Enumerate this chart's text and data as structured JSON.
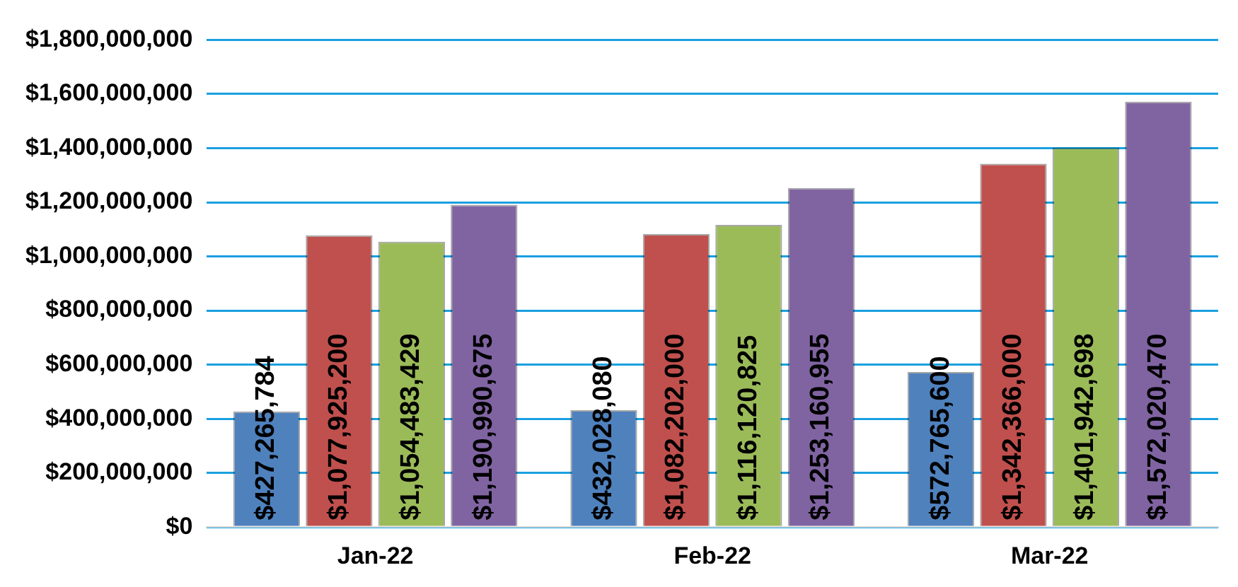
{
  "chart_data": {
    "type": "bar",
    "categories": [
      "Jan-22",
      "Feb-22",
      "Mar-22"
    ],
    "series": [
      {
        "color": "#4f81bd",
        "values": [
          427265784,
          432028080,
          572765600
        ],
        "value_labels": [
          "$427,265,784",
          "$432,028,080",
          "$572,765,600"
        ]
      },
      {
        "color": "#c0504d",
        "values": [
          1077925200,
          1082202000,
          1342366000
        ],
        "value_labels": [
          "$1,077,925,200",
          "$1,082,202,000",
          "$1,342,366,000"
        ]
      },
      {
        "color": "#9bbb59",
        "values": [
          1054483429,
          1116120825,
          1401942698
        ],
        "value_labels": [
          "$1,054,483,429",
          "$1,116,120,825",
          "$1,401,942,698"
        ]
      },
      {
        "color": "#8064a2",
        "values": [
          1190990675,
          1253160955,
          1572020470
        ],
        "value_labels": [
          "$1,190,990,675",
          "$1,253,160,955",
          "$1,572,020,470"
        ]
      }
    ],
    "ylim": [
      0,
      1800000000
    ],
    "yticks": [
      {
        "value": 0,
        "label": "$0"
      },
      {
        "value": 200000000,
        "label": "$200,000,000"
      },
      {
        "value": 400000000,
        "label": "$400,000,000"
      },
      {
        "value": 600000000,
        "label": "$600,000,000"
      },
      {
        "value": 800000000,
        "label": "$800,000,000"
      },
      {
        "value": 1000000000,
        "label": "$1,000,000,000"
      },
      {
        "value": 1200000000,
        "label": "$1,200,000,000"
      },
      {
        "value": 1400000000,
        "label": "$1,400,000,000"
      },
      {
        "value": 1600000000,
        "label": "$1,600,000,000"
      },
      {
        "value": 1800000000,
        "label": "$1,800,000,000"
      }
    ],
    "grid": "y",
    "legend": false
  }
}
